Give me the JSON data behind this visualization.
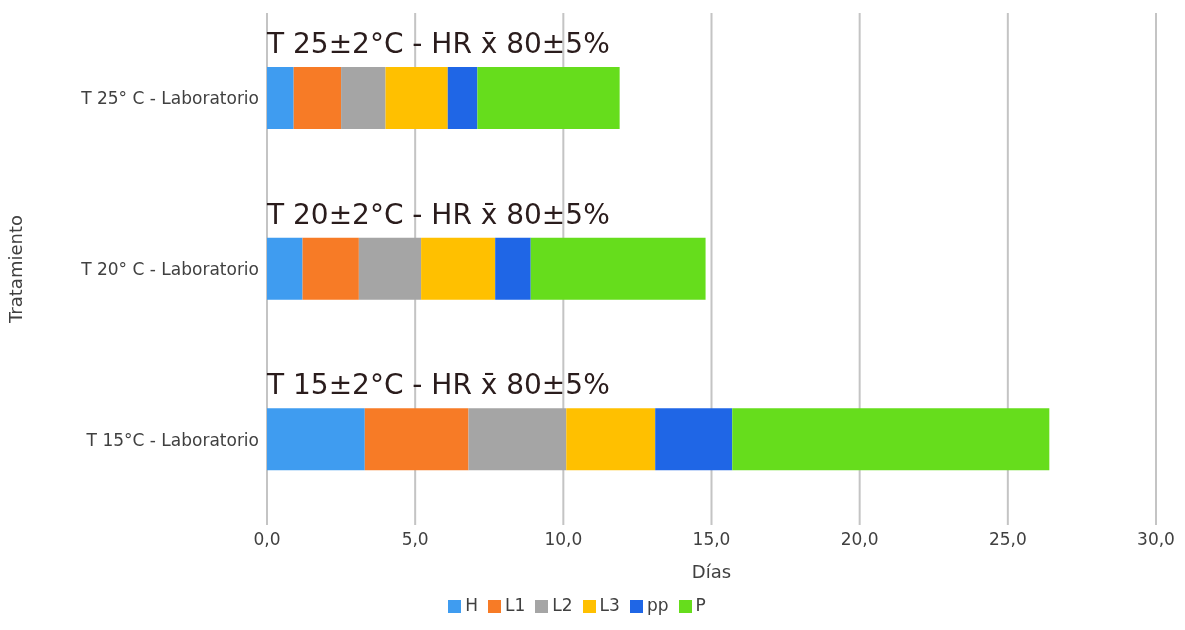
{
  "chart_data": {
    "type": "bar",
    "orientation": "horizontal",
    "stacked": true,
    "categories": [
      "T 25° C - Laboratorio",
      "T 20° C - Laboratorio",
      "T 15°C - Laboratorio"
    ],
    "series": [
      {
        "name": "H",
        "color": "#3f9cf0",
        "values": [
          0.9,
          1.2,
          3.3
        ]
      },
      {
        "name": "L1",
        "color": "#f77b26",
        "values": [
          1.6,
          1.9,
          3.5
        ]
      },
      {
        "name": "L2",
        "color": "#a5a5a5",
        "values": [
          1.5,
          2.1,
          3.3
        ]
      },
      {
        "name": "L3",
        "color": "#ffc000",
        "values": [
          2.1,
          2.5,
          3.0
        ]
      },
      {
        "name": "pp",
        "color": "#1f66e6",
        "values": [
          1.0,
          1.2,
          2.6
        ]
      },
      {
        "name": "P",
        "color": "#66dd1c",
        "values": [
          4.8,
          5.9,
          10.7
        ]
      }
    ],
    "xlim": [
      0,
      30
    ],
    "xticks": [
      {
        "value": 0,
        "label": "0,0"
      },
      {
        "value": 5,
        "label": "5,0"
      },
      {
        "value": 10,
        "label": "10,0"
      },
      {
        "value": 15,
        "label": "15,0"
      },
      {
        "value": 20,
        "label": "20,0"
      },
      {
        "value": 25,
        "label": "25,0"
      },
      {
        "value": 30,
        "label": "30,0"
      }
    ],
    "xlabel": "Días",
    "ylabel": "Tratamiento",
    "grid": "x",
    "legend": "bottom",
    "annotations": [
      "T 25±2°C - HR x̄ 80±5%",
      "T 20±2°C - HR x̄ 80±5%",
      "T 15±2°C - HR x̄ 80±5%"
    ]
  }
}
